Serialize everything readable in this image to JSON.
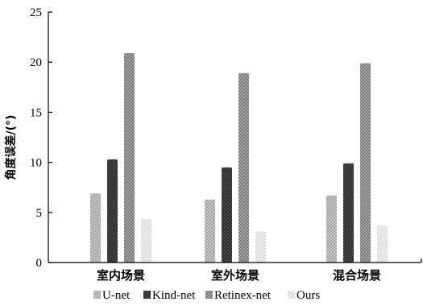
{
  "chart_data": {
    "type": "bar",
    "title": "",
    "xlabel": "",
    "ylabel": "角度误差/(°)",
    "ylim": [
      0,
      25
    ],
    "yticks": [
      0,
      5,
      10,
      15,
      20,
      25
    ],
    "grid": false,
    "legend_position": "bottom",
    "categories": [
      "室内场景",
      "室外场景",
      "混合场景"
    ],
    "series": [
      {
        "name": "U-net",
        "values": [
          6.9,
          6.3,
          6.7
        ],
        "color": "#c4c4c4"
      },
      {
        "name": "Kind-net",
        "values": [
          10.3,
          9.5,
          9.9
        ],
        "color": "#3a3a3a"
      },
      {
        "name": "Retinex-net",
        "values": [
          20.9,
          18.9,
          19.9
        ],
        "color": "#9a9a9a"
      },
      {
        "name": "Ours",
        "values": [
          4.3,
          3.1,
          3.7
        ],
        "color": "#e6e6e6"
      }
    ]
  }
}
